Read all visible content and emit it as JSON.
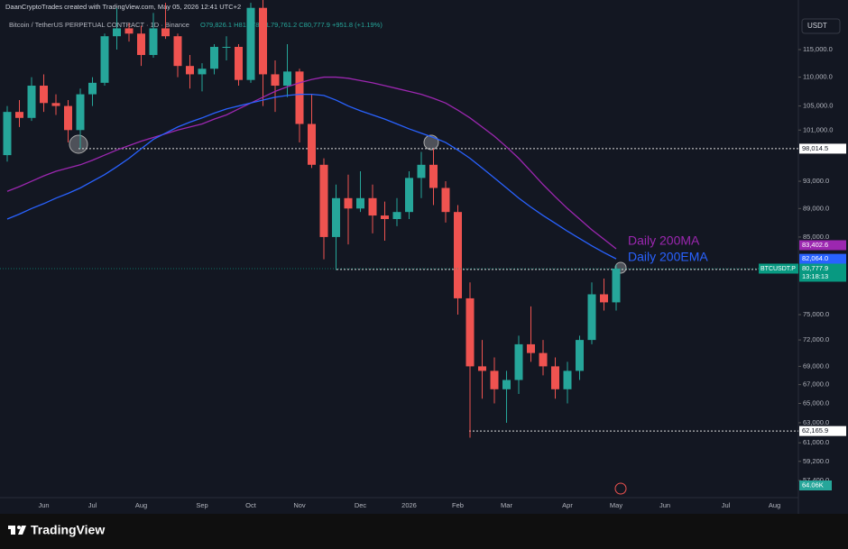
{
  "header": {
    "author_line": "DaanCryptoTrades created with TradingView.com, May 05, 2026 12:41 UTC+2",
    "symbol": "Bitcoin / TetherUS PERPETUAL CONTRACT · 1D · Binance",
    "ohlc": "O79,826.1 H81,278.2 L79,761.2 C80,777.9 +951.8 (+1.19%)",
    "currency": "USDT"
  },
  "footer": {
    "brand": "TradingView"
  },
  "chart_data": {
    "type": "candlestick",
    "log_scale": true,
    "grid": false,
    "up_color": "#26a69a",
    "down_color": "#ef5350",
    "ylim": [
      56000,
      121000
    ],
    "yticks": [
      {
        "value": 115000,
        "label": "115,000.0"
      },
      {
        "value": 110000,
        "label": "110,000.0"
      },
      {
        "value": 105000,
        "label": "105,000.0"
      },
      {
        "value": 101000,
        "label": "101,000.0"
      },
      {
        "value": 93000,
        "label": "93,000.0"
      },
      {
        "value": 89000,
        "label": "89,000.0"
      },
      {
        "value": 85000,
        "label": "85,000.0"
      },
      {
        "value": 75000,
        "label": "75,000.0"
      },
      {
        "value": 72000,
        "label": "72,000.0"
      },
      {
        "value": 69000,
        "label": "69,000.0"
      },
      {
        "value": 67000,
        "label": "67,000.0"
      },
      {
        "value": 65000,
        "label": "65,000.0"
      },
      {
        "value": 63000,
        "label": "63,000.0"
      },
      {
        "value": 61000,
        "label": "61,000.0"
      },
      {
        "value": 59200,
        "label": "59,200.0"
      },
      {
        "value": 57400,
        "label": "57,400.0"
      }
    ],
    "categories": [
      null,
      null,
      null,
      "Jun",
      null,
      null,
      null,
      "Jul",
      null,
      null,
      null,
      "Aug",
      null,
      null,
      null,
      null,
      "Sep",
      null,
      null,
      null,
      "Oct",
      null,
      null,
      null,
      "Nov",
      null,
      null,
      null,
      null,
      "Dec",
      null,
      null,
      null,
      "2026",
      null,
      null,
      null,
      "Feb",
      null,
      null,
      null,
      "Mar",
      null,
      null,
      null,
      null,
      "Apr",
      null,
      null,
      null,
      "May",
      null,
      null,
      null,
      "Jun",
      null,
      null,
      null,
      null,
      "Jul",
      null,
      null,
      null,
      "Aug",
      null
    ],
    "open": [
      97000,
      104000,
      103000,
      108500,
      105500,
      105000,
      101000,
      107000,
      109000,
      117500,
      119000,
      118000,
      114000,
      119000,
      117500,
      112000,
      110500,
      111500,
      115500,
      115500,
      109500,
      123000,
      110500,
      108500,
      111000,
      102000,
      95500,
      85000,
      90500,
      89000,
      90500,
      88000,
      87500,
      88500,
      93500,
      95500,
      92000,
      88500,
      77000,
      69000,
      68500,
      66500,
      67500,
      71500,
      70500,
      69000,
      66500,
      68500,
      72000,
      77500,
      76500,
      null,
      null,
      null,
      null,
      null,
      null,
      null,
      null,
      null,
      null,
      null,
      null,
      null,
      null
    ],
    "high": [
      105000,
      106000,
      110000,
      110500,
      107000,
      106000,
      108000,
      110000,
      118000,
      123000,
      120000,
      119500,
      122000,
      124000,
      118000,
      114000,
      112500,
      116000,
      117500,
      116000,
      124000,
      126000,
      113000,
      116000,
      111500,
      107000,
      96500,
      92500,
      94000,
      94500,
      92500,
      90000,
      90500,
      94500,
      97500,
      98000,
      93000,
      89500,
      79000,
      72000,
      70000,
      68500,
      72500,
      76000,
      72000,
      70000,
      69500,
      72500,
      79000,
      79500,
      81300,
      null,
      null,
      null,
      null,
      null,
      null,
      null,
      null,
      null,
      null,
      null,
      null,
      null,
      null
    ],
    "low": [
      96000,
      101500,
      102500,
      104000,
      103500,
      99000,
      98000,
      105000,
      108500,
      115000,
      116500,
      112000,
      113500,
      117000,
      110000,
      108000,
      107500,
      110500,
      113000,
      108500,
      109000,
      105000,
      104000,
      106500,
      99000,
      95000,
      82000,
      80600,
      84000,
      88500,
      85500,
      84500,
      86500,
      87500,
      90500,
      89500,
      87000,
      75000,
      61500,
      65500,
      65000,
      63000,
      66000,
      69500,
      68000,
      65500,
      65000,
      67500,
      71500,
      75500,
      75500,
      null,
      null,
      null,
      null,
      null,
      null,
      null,
      null,
      null,
      null,
      null,
      null,
      null,
      null
    ],
    "close": [
      104000,
      103000,
      108500,
      105500,
      105000,
      101000,
      107000,
      109000,
      117500,
      119000,
      118000,
      114000,
      119000,
      117500,
      112000,
      110500,
      111500,
      115500,
      115500,
      109500,
      123000,
      110500,
      108500,
      111000,
      102000,
      95500,
      85000,
      90500,
      89000,
      90500,
      88000,
      87500,
      88500,
      93500,
      95500,
      92000,
      88500,
      77000,
      69000,
      68500,
      66500,
      67500,
      71500,
      70500,
      69000,
      66500,
      68500,
      72000,
      77500,
      76500,
      80777.9,
      null,
      null,
      null,
      null,
      null,
      null,
      null,
      null,
      null,
      null,
      null,
      null,
      null,
      null
    ],
    "series": [
      {
        "name": "Daily 200MA",
        "color": "#9c27b0",
        "values": [
          91500,
          92200,
          93000,
          93800,
          94500,
          95000,
          95500,
          96200,
          97000,
          97800,
          98500,
          99200,
          99800,
          100400,
          101000,
          101500,
          102000,
          102800,
          103500,
          104500,
          105500,
          106500,
          107500,
          108300,
          109000,
          109600,
          110000,
          110000,
          109800,
          109400,
          109000,
          108500,
          108000,
          107500,
          107000,
          106300,
          105500,
          104300,
          103000,
          101500,
          100000,
          98300,
          96500,
          94500,
          92500,
          90700,
          89000,
          87500,
          86000,
          84700,
          83402.6,
          null,
          null,
          null,
          null,
          null,
          null,
          null,
          null,
          null,
          null,
          null,
          null,
          null,
          null
        ]
      },
      {
        "name": "Daily 200EMA",
        "color": "#2962ff",
        "values": [
          87500,
          88200,
          89000,
          89700,
          90500,
          91200,
          92000,
          93000,
          94000,
          95200,
          96500,
          98000,
          99500,
          100500,
          101500,
          102300,
          103000,
          103800,
          104500,
          105000,
          105500,
          106000,
          106500,
          106800,
          107000,
          107000,
          106800,
          106000,
          105000,
          104200,
          103500,
          102800,
          102000,
          101200,
          100500,
          99800,
          99000,
          97800,
          96500,
          95000,
          93500,
          92000,
          90500,
          89200,
          88000,
          86900,
          85800,
          84800,
          83800,
          82900,
          82064,
          null,
          null,
          null,
          null,
          null,
          null,
          null,
          null,
          null,
          null,
          null,
          null,
          null,
          null
        ]
      }
    ],
    "price_tags": [
      {
        "value": 83402.6,
        "label": "83,402.6",
        "color": "#9c27b0"
      },
      {
        "value": 82064,
        "label": "82,064.0",
        "color": "#2962ff"
      }
    ],
    "last_price": {
      "name": "BTCUSDT.P",
      "value": 80777.9,
      "label": "80,777.9",
      "countdown": "13:18:13",
      "color": "#089981"
    },
    "levels": [
      {
        "value": 98014.5,
        "label": "98,014.5"
      },
      {
        "value": 80675.1,
        "label": "80,675.1"
      },
      {
        "value": 62165.9,
        "label": "62,165.9"
      }
    ],
    "volume_label": "64.06K"
  }
}
